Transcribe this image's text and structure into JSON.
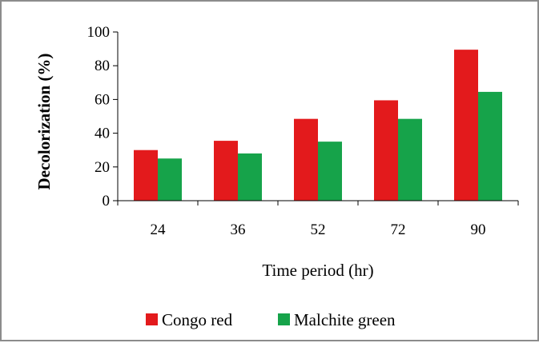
{
  "chart_data": {
    "type": "bar",
    "categories": [
      "24",
      "36",
      "52",
      "72",
      "90"
    ],
    "series": [
      {
        "name": "Congo red",
        "color": "#e31a1c",
        "values": [
          30,
          35.5,
          48.5,
          59.5,
          89.5
        ]
      },
      {
        "name": "Malchite green",
        "color": "#16a34a",
        "values": [
          25,
          28,
          35,
          48.5,
          64.5
        ]
      }
    ],
    "xlabel": "Time period (hr)",
    "ylabel": "Decolorization (%)",
    "ylim": [
      0,
      100
    ],
    "yticks": [
      0,
      20,
      40,
      60,
      80,
      100
    ],
    "grid": false,
    "legend_position": "bottom"
  }
}
